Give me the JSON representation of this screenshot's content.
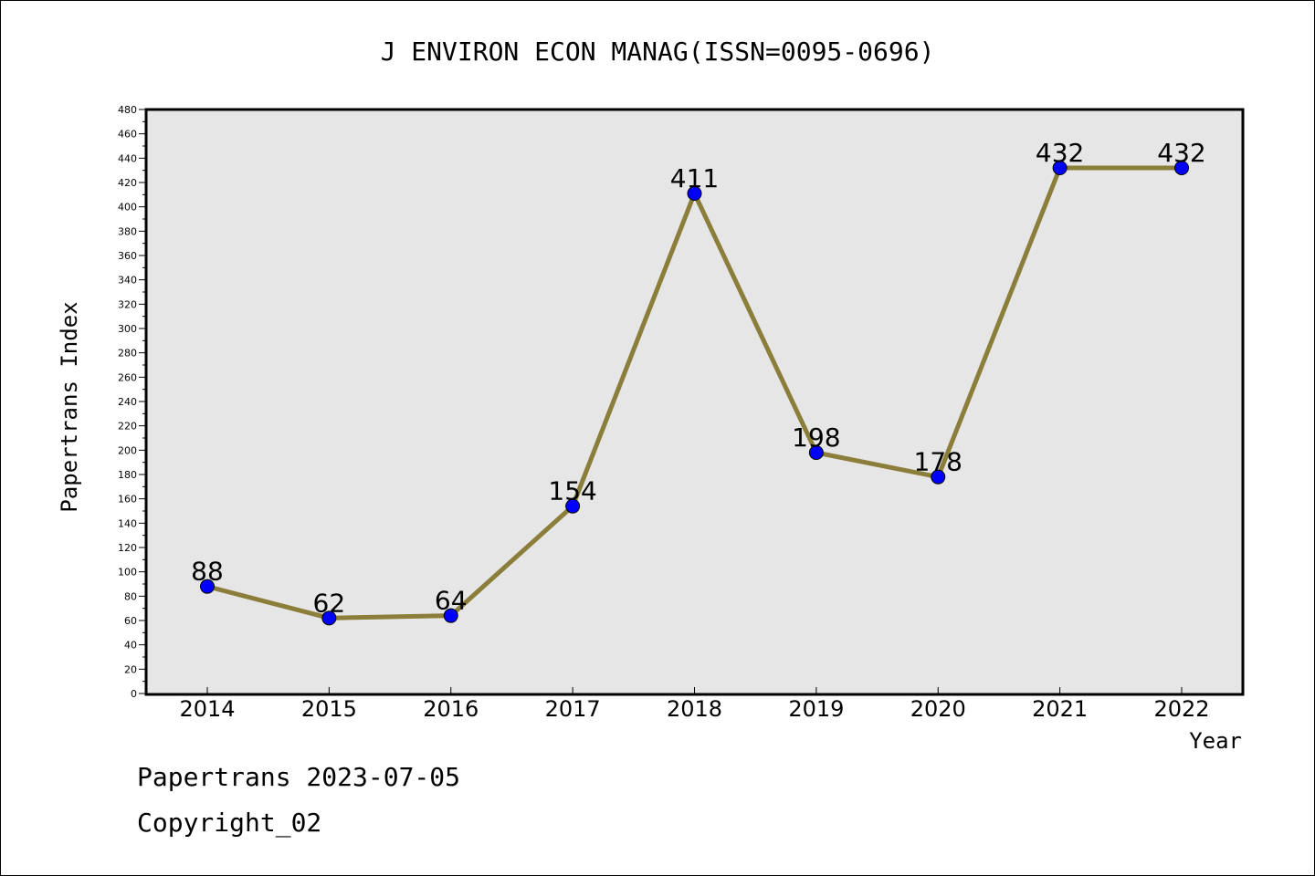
{
  "chart_data": {
    "type": "line",
    "title": "J ENVIRON ECON MANAG(ISSN=0095-0696)",
    "xlabel": "Year",
    "ylabel": "Papertrans Index",
    "categories": [
      "2014",
      "2015",
      "2016",
      "2017",
      "2018",
      "2019",
      "2020",
      "2021",
      "2022"
    ],
    "series": [
      {
        "values": [
          88,
          62,
          64,
          154,
          411,
          198,
          178,
          432,
          432
        ]
      }
    ],
    "ylim": [
      0,
      480
    ],
    "ytick_step": 20,
    "grid": false,
    "line_color": "#8B7D3A",
    "marker_color": "#0000FF",
    "plot_background": "#E6E6E6"
  },
  "footer": {
    "line1": "Papertrans 2023-07-05",
    "line2": "Copyright_02"
  }
}
